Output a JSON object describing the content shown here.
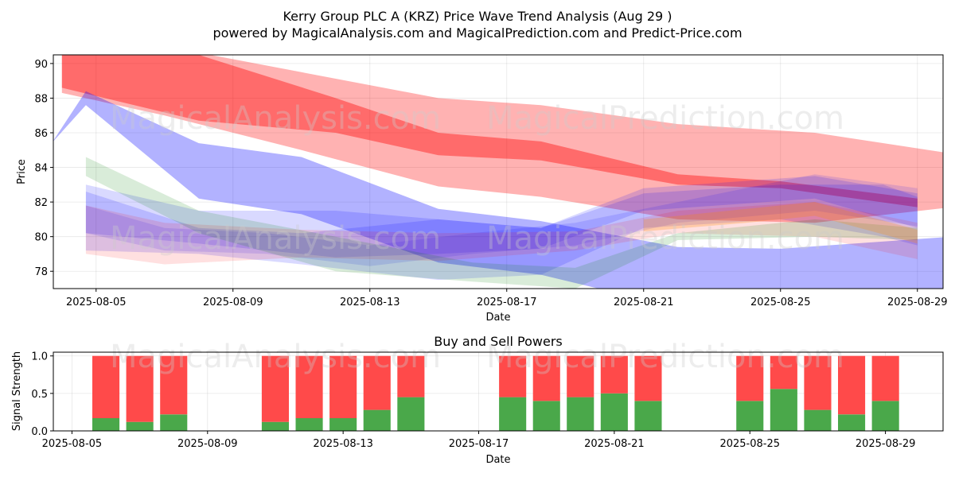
{
  "figure": {
    "title_line1": "Kerry Group PLC A (KRZ) Price Wave Trend Analysis (Aug 29 )",
    "title_line2": "powered by MagicalAnalysis.com and MagicalPrediction.com and Predict-Price.com",
    "watermarks": [
      "MagicalAnalysis.com",
      "MagicalPrediction.com"
    ]
  },
  "chart_data": [
    {
      "type": "area",
      "title": "",
      "xlabel": "Date",
      "ylabel": "Price",
      "ylim": [
        77,
        90.5
      ],
      "xlim": [
        "2025-08-03.75",
        "2025-08-29.75"
      ],
      "grid": true,
      "x_ticks": [
        "2025-08-05",
        "2025-08-09",
        "2025-08-13",
        "2025-08-17",
        "2025-08-21",
        "2025-08-25",
        "2025-08-29"
      ],
      "y_ticks": [
        78,
        80,
        82,
        84,
        86,
        88,
        90
      ],
      "series": [
        {
          "color": "#ff0000",
          "opacity": 0.3,
          "x": [
            "2025-08-04",
            "2025-08-07",
            "2025-08-11",
            "2025-08-15",
            "2025-08-18",
            "2025-08-22",
            "2025-08-26",
            "2025-08-30"
          ],
          "upper": [
            91.5,
            91.0,
            89.5,
            88.0,
            87.6,
            86.5,
            86.0,
            84.8
          ],
          "lower": [
            88.3,
            87.0,
            85.0,
            82.9,
            82.3,
            81.0,
            80.8,
            81.7
          ]
        },
        {
          "color": "#ff0000",
          "opacity": 0.4,
          "x": [
            "2025-08-04",
            "2025-08-08",
            "2025-08-12",
            "2025-08-15",
            "2025-08-18",
            "2025-08-22",
            "2025-08-25",
            "2025-08-29"
          ],
          "upper": [
            92.5,
            90.5,
            88.0,
            86.0,
            85.5,
            83.6,
            83.2,
            82.2
          ],
          "lower": [
            88.6,
            86.7,
            86.0,
            84.7,
            84.4,
            83.0,
            82.8,
            81.7
          ]
        },
        {
          "color": "#0000ff",
          "opacity": 0.3,
          "x": [
            "2025-08-03.7",
            "2025-08-04.7",
            "2025-08-08",
            "2025-08-11",
            "2025-08-15",
            "2025-08-18",
            "2025-08-22",
            "2025-08-25",
            "2025-08-30"
          ],
          "upper": [
            85.4,
            88.4,
            85.4,
            84.6,
            81.6,
            80.9,
            79.4,
            79.3,
            80.0
          ],
          "lower": [
            85.4,
            87.6,
            82.2,
            81.3,
            78.5,
            77.8,
            75.9,
            76.0,
            76.0
          ]
        },
        {
          "color": "#0000ff",
          "opacity": 0.15,
          "x": [
            "2025-08-04.7",
            "2025-08-08",
            "2025-08-11",
            "2025-08-15",
            "2025-08-18",
            "2025-08-21",
            "2025-08-25",
            "2025-08-28",
            "2025-08-29"
          ],
          "upper": [
            82.6,
            80.5,
            80.2,
            81.0,
            80.5,
            82.5,
            83.0,
            83.0,
            82.3
          ],
          "lower": [
            79.2,
            79.0,
            78.4,
            77.5,
            77.8,
            80.5,
            81.0,
            80.0,
            79.5
          ]
        },
        {
          "color": "#0000ff",
          "opacity": 0.15,
          "x": [
            "2025-08-04.7",
            "2025-08-08",
            "2025-08-12",
            "2025-08-15",
            "2025-08-18",
            "2025-08-21",
            "2025-08-26",
            "2025-08-29"
          ],
          "upper": [
            83.0,
            81.5,
            81.5,
            81.0,
            80.5,
            82.8,
            83.5,
            82.5
          ],
          "lower": [
            80.2,
            79.6,
            78.8,
            79.0,
            79.3,
            81.5,
            82.2,
            80.5
          ]
        },
        {
          "color": "#0000ff",
          "opacity": 0.12,
          "x": [
            "2025-08-04.7",
            "2025-08-07",
            "2025-08-10",
            "2025-08-13",
            "2025-08-16",
            "2025-08-19",
            "2025-08-22",
            "2025-08-26",
            "2025-08-29"
          ],
          "upper": [
            81.8,
            80.5,
            80.2,
            79.5,
            80.2,
            80.8,
            82.0,
            83.6,
            82.8
          ],
          "lower": [
            80.2,
            79.2,
            79.0,
            78.3,
            79.0,
            79.5,
            80.8,
            81.5,
            80.6
          ]
        },
        {
          "color": "#ff0000",
          "opacity": 0.12,
          "x": [
            "2025-08-04.7",
            "2025-08-07",
            "2025-08-11",
            "2025-08-15",
            "2025-08-19",
            "2025-08-22",
            "2025-08-26",
            "2025-08-29"
          ],
          "upper": [
            81.8,
            80.8,
            80.4,
            80.2,
            80.3,
            81.5,
            82.0,
            80.8
          ],
          "lower": [
            79.0,
            78.4,
            78.8,
            78.6,
            79.2,
            80.2,
            80.0,
            78.7
          ]
        },
        {
          "color": "#008000",
          "opacity": 0.15,
          "x": [
            "2025-08-04.7",
            "2025-08-08",
            "2025-08-12",
            "2025-08-16",
            "2025-08-19",
            "2025-08-22",
            "2025-08-26",
            "2025-08-29"
          ],
          "upper": [
            84.6,
            81.5,
            80.0,
            78.5,
            78.2,
            80.2,
            81.0,
            80.5
          ],
          "lower": [
            83.5,
            80.2,
            78.0,
            77.4,
            77.0,
            79.8,
            80.0,
            79.8
          ]
        },
        {
          "color": "#ff8800",
          "opacity": 0.25,
          "x": [
            "2025-08-21",
            "2025-08-24",
            "2025-08-26",
            "2025-08-29"
          ],
          "upper": [
            81.0,
            81.6,
            82.0,
            80.4
          ],
          "lower": [
            80.3,
            80.8,
            81.2,
            79.6
          ]
        }
      ]
    },
    {
      "type": "bar",
      "title": "Buy and Sell Powers",
      "xlabel": "Date",
      "ylabel": "Signal Strength",
      "ylim": [
        0,
        1.05
      ],
      "y_ticks": [
        0.0,
        0.5,
        1.0
      ],
      "x_ticks": [
        "2025-08-05",
        "2025-08-09",
        "2025-08-13",
        "2025-08-17",
        "2025-08-21",
        "2025-08-25",
        "2025-08-29"
      ],
      "colors": {
        "buy": "#4aa84a",
        "sell": "#ff4a4a"
      },
      "x": [
        "2025-08-06",
        "2025-08-07",
        "2025-08-08",
        "2025-08-11",
        "2025-08-12",
        "2025-08-13",
        "2025-08-14",
        "2025-08-15",
        "2025-08-18",
        "2025-08-19",
        "2025-08-20",
        "2025-08-21",
        "2025-08-22",
        "2025-08-25",
        "2025-08-26",
        "2025-08-27",
        "2025-08-28",
        "2025-08-29"
      ],
      "series": [
        {
          "name": "Buy",
          "values": [
            0.17,
            0.12,
            0.22,
            0.12,
            0.17,
            0.17,
            0.28,
            0.45,
            0.45,
            0.4,
            0.45,
            0.5,
            0.4,
            0.4,
            0.56,
            0.28,
            0.22,
            0.4
          ]
        },
        {
          "name": "Sell",
          "values": [
            0.83,
            0.88,
            0.78,
            0.88,
            0.83,
            0.83,
            0.72,
            0.55,
            0.55,
            0.6,
            0.55,
            0.5,
            0.6,
            0.6,
            0.44,
            0.72,
            0.78,
            0.6
          ]
        }
      ]
    }
  ]
}
